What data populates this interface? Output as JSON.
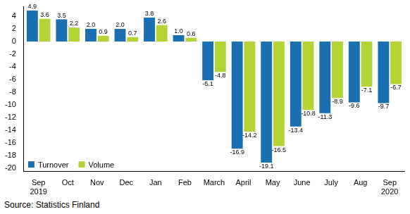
{
  "chart_data": {
    "type": "bar",
    "categories": [
      "Sep 2019",
      "Oct",
      "Nov",
      "Dec",
      "Jan",
      "Feb",
      "March",
      "April",
      "May",
      "June",
      "July",
      "Aug",
      "Sep 2020"
    ],
    "series": [
      {
        "name": "Turnover",
        "color": "#1a6fb1",
        "values": [
          4.9,
          3.5,
          2.0,
          2.0,
          3.8,
          1.0,
          -6.1,
          -16.9,
          -19.1,
          -13.4,
          -11.3,
          -9.6,
          -9.7
        ],
        "value_labels": [
          "4.9",
          "3.5",
          "2.0",
          "2.0",
          "3.8",
          "1.0",
          "-6.1",
          "-16.9",
          "-19.1",
          "-13.4",
          "-11.3",
          "-9.6",
          "-9.7"
        ]
      },
      {
        "name": "Volume",
        "color": "#b4d334",
        "values": [
          3.6,
          2.2,
          0.9,
          0.7,
          2.6,
          0.6,
          -4.8,
          -14.2,
          -16.5,
          -10.8,
          -8.9,
          -7.1,
          -6.7
        ],
        "value_labels": [
          "3.6",
          "2.2",
          "0.9",
          "0.7",
          "2.6",
          "0.6",
          "-4.8",
          "-14.2",
          "-16.5",
          "-10.8",
          "-8.9",
          "-7.1",
          "-6.7"
        ]
      }
    ],
    "ylim": [
      -20.5,
      5.5
    ],
    "yticks": [
      -20,
      -18,
      -16,
      -14,
      -12,
      -10,
      -8,
      -6,
      -4,
      -2,
      0,
      2,
      4
    ],
    "grid": false,
    "legend": "lower left",
    "data_labels": true,
    "source": "Source: Statistics Finland"
  }
}
